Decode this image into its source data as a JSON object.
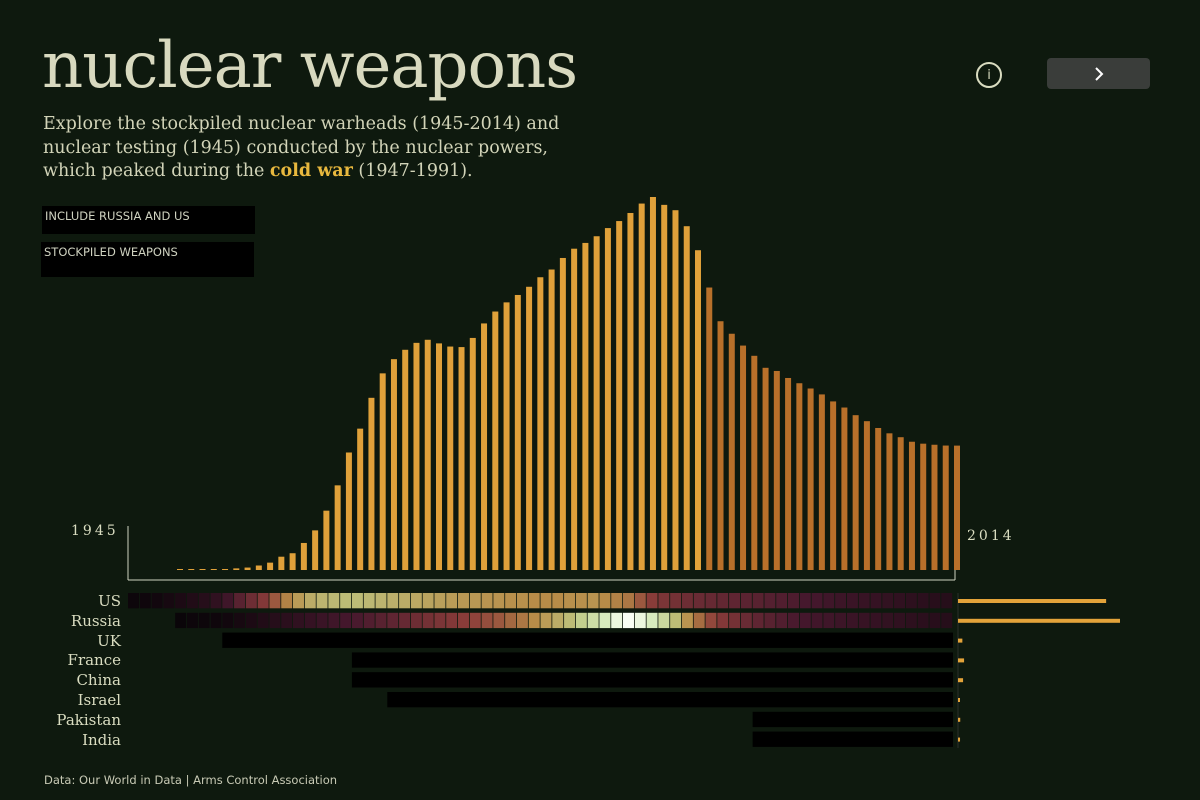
{
  "header": {
    "title": "nuclear weapons",
    "subtitle_pre": "Explore the stockpiled nuclear warheads (1945-2014) and nuclear testing (1945) conducted by the nuclear powers, which peaked during the ",
    "subtitle_highlight": "cold war",
    "subtitle_post": " (1947-1991).",
    "info_label": "i"
  },
  "filters": {
    "include_label": "INCLUDE RUSSIA AND US",
    "measure_label": "STOCKPILED WEAPONS"
  },
  "axis": {
    "start_year": "1945",
    "end_year": "2014"
  },
  "footer": {
    "source": "Data: Our World in Data | Arms Control Association"
  },
  "colors": {
    "background": "#0e190e",
    "cold_war_bar": "#e0a13a",
    "post_war_bar": "#b8702a",
    "highlight": "#e8b83e",
    "total_bar": "#e3a33a"
  },
  "chart_data": {
    "type": "bar",
    "x": [
      1945,
      1946,
      1947,
      1948,
      1949,
      1950,
      1951,
      1952,
      1953,
      1954,
      1955,
      1956,
      1957,
      1958,
      1959,
      1960,
      1961,
      1962,
      1963,
      1964,
      1965,
      1966,
      1967,
      1968,
      1969,
      1970,
      1971,
      1972,
      1973,
      1974,
      1975,
      1976,
      1977,
      1978,
      1979,
      1980,
      1981,
      1982,
      1983,
      1984,
      1985,
      1986,
      1987,
      1988,
      1989,
      1990,
      1991,
      1992,
      1993,
      1994,
      1995,
      1996,
      1997,
      1998,
      1999,
      2000,
      2001,
      2002,
      2003,
      2004,
      2005,
      2006,
      2007,
      2008,
      2009,
      2010,
      2011,
      2012,
      2013,
      2014
    ],
    "values": [
      2,
      9,
      13,
      50,
      170,
      304,
      457,
      841,
      1377,
      2489,
      3140,
      5062,
      7418,
      11108,
      15848,
      21998,
      26464,
      32236,
      36815,
      39472,
      41228,
      42526,
      43101,
      42426,
      41833,
      41733,
      43448,
      46162,
      48389,
      50105,
      51490,
      53024,
      54809,
      56256,
      58417,
      60153,
      61234,
      62484,
      64012,
      65328,
      66839,
      68604,
      69832,
      68359,
      67359,
      64363,
      59869,
      52886,
      46573,
      44231,
      42016,
      40102,
      37856,
      37262,
      35950,
      34966,
      33981,
      32873,
      31562,
      30418,
      28986,
      27862,
      26587,
      25590,
      24862,
      24012,
      23650,
      23450,
      23299,
      23287
    ],
    "cold_war_range": [
      1947,
      1991
    ],
    "ylabel": "",
    "heatmap": {
      "rows": [
        "US",
        "Russia",
        "UK",
        "France",
        "China",
        "Israel",
        "Pakistan",
        "India"
      ],
      "start_years": [
        1945,
        1949,
        1953,
        1964,
        1964,
        1967,
        1998,
        1998
      ],
      "intensity": {
        "US": [
          0.02,
          0.03,
          0.04,
          0.06,
          0.08,
          0.1,
          0.12,
          0.16,
          0.22,
          0.3,
          0.36,
          0.42,
          0.5,
          0.58,
          0.64,
          0.68,
          0.7,
          0.71,
          0.72,
          0.72,
          0.71,
          0.7,
          0.69,
          0.68,
          0.67,
          0.66,
          0.65,
          0.64,
          0.63,
          0.63,
          0.62,
          0.62,
          0.61,
          0.61,
          0.6,
          0.6,
          0.6,
          0.61,
          0.61,
          0.62,
          0.6,
          0.58,
          0.56,
          0.5,
          0.44,
          0.4,
          0.38,
          0.36,
          0.35,
          0.34,
          0.33,
          0.32,
          0.31,
          0.3,
          0.29,
          0.28,
          0.27,
          0.25,
          0.24,
          0.22,
          0.21,
          0.2,
          0.19,
          0.18,
          0.17,
          0.16,
          0.15,
          0.14,
          0.13,
          0.12
        ],
        "Russia": [
          0.0,
          0.0,
          0.0,
          0.0,
          0.01,
          0.02,
          0.02,
          0.03,
          0.04,
          0.06,
          0.08,
          0.1,
          0.12,
          0.14,
          0.16,
          0.18,
          0.2,
          0.22,
          0.24,
          0.26,
          0.28,
          0.3,
          0.32,
          0.34,
          0.36,
          0.38,
          0.4,
          0.42,
          0.44,
          0.46,
          0.48,
          0.5,
          0.53,
          0.56,
          0.6,
          0.64,
          0.68,
          0.72,
          0.78,
          0.84,
          0.9,
          0.96,
          1.0,
          0.96,
          0.9,
          0.82,
          0.72,
          0.62,
          0.54,
          0.47,
          0.42,
          0.38,
          0.35,
          0.32,
          0.3,
          0.28,
          0.26,
          0.24,
          0.23,
          0.22,
          0.21,
          0.2,
          0.19,
          0.18,
          0.17,
          0.16,
          0.15,
          0.14,
          0.13,
          0.12
        ]
      }
    },
    "totals_2014": [
      {
        "country": "US",
        "value": 7315
      },
      {
        "country": "Russia",
        "value": 8000
      },
      {
        "country": "UK",
        "value": 215
      },
      {
        "country": "France",
        "value": 300
      },
      {
        "country": "China",
        "value": 250
      },
      {
        "country": "Israel",
        "value": 80
      },
      {
        "country": "Pakistan",
        "value": 110
      },
      {
        "country": "India",
        "value": 100
      }
    ]
  }
}
